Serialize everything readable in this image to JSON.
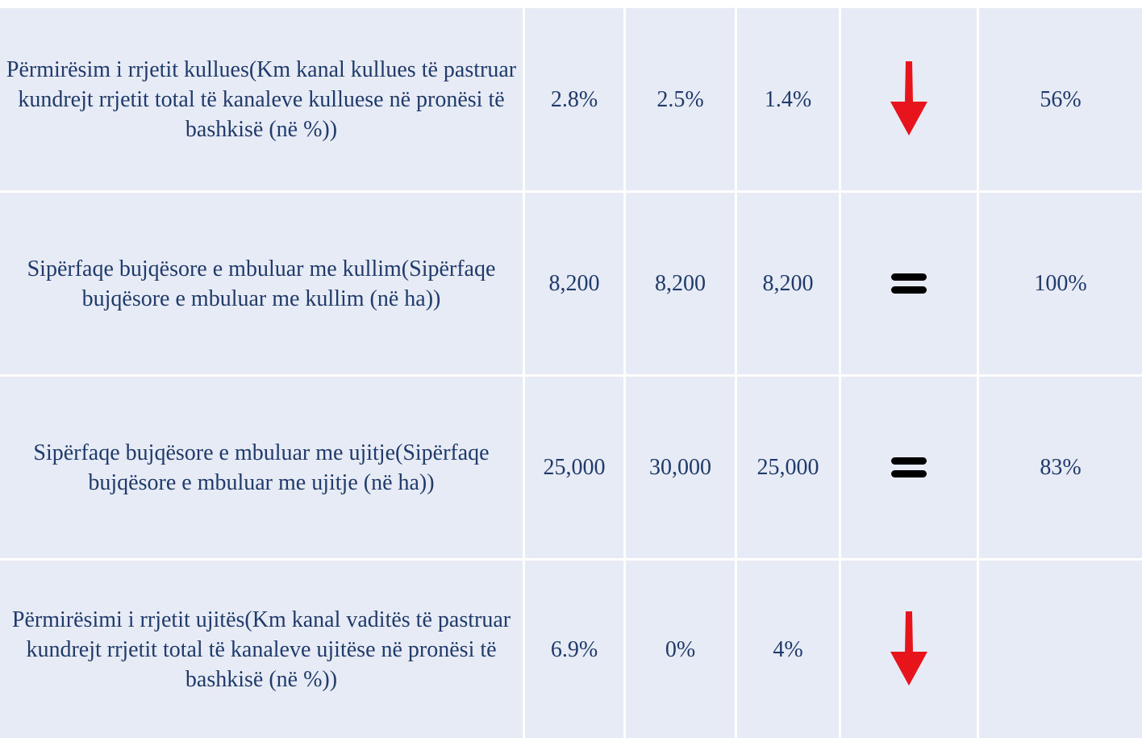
{
  "table": {
    "rows": [
      {
        "indicator": "Përmirësim i rrjetit kullues(Km kanal kullues të pastruar kundrejt rrjetit total të kanaleve kulluese në pronësi të bashkisë (në %))",
        "values": [
          "2.8%",
          "2.5%",
          "1.4%"
        ],
        "target": "56%"
      },
      {
        "indicator": "Sipërfaqe bujqësore e mbuluar me kullim(Sipërfaqe bujqësore e mbuluar me kullim (në ha))",
        "values": [
          "8,200",
          "8,200",
          "8,200"
        ],
        "target": "100%"
      },
      {
        "indicator": "Sipërfaqe bujqësore e mbuluar me ujitje(Sipërfaqe bujqësore e mbuluar me ujitje (në ha))",
        "values": [
          "25,000",
          "30,000",
          "25,000"
        ],
        "target": "83%"
      },
      {
        "indicator": "Përmirësimi i rrjetit ujitës(Km kanal vaditës të pastruar kundrejt rrjetit total të kanaleve ujitëse në pronësi të bashkisë (në %))",
        "values": [
          "6.9%",
          "0%",
          "4%"
        ]
      }
    ]
  }
}
